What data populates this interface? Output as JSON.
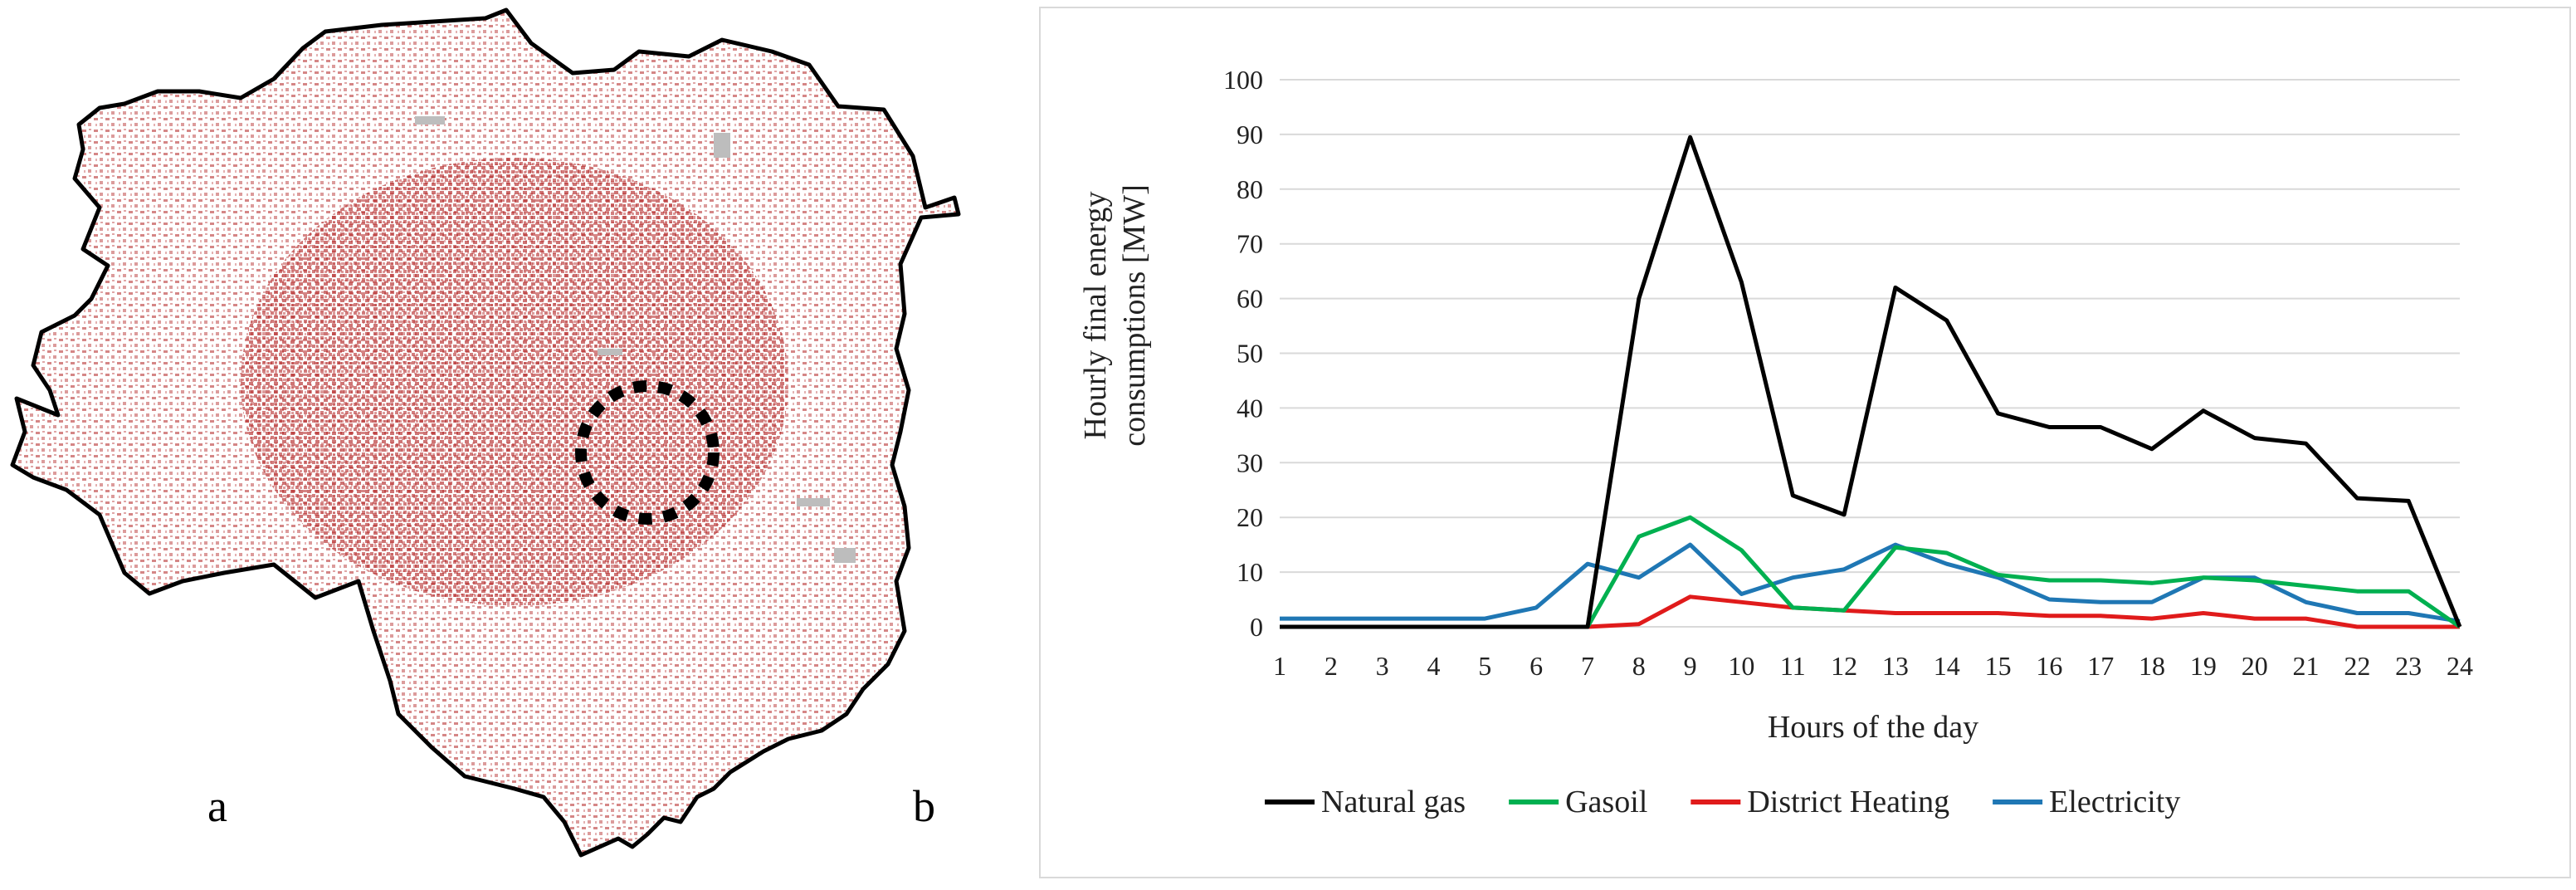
{
  "panel_labels": {
    "map": "a",
    "chart": "b"
  },
  "colors": {
    "natural_gas": "#000000",
    "gasoil": "#00b050",
    "district_heating": "#e01b1b",
    "electricity": "#1f77b4",
    "gridline": "#d9d9d9",
    "map_buildings": "#b22222",
    "map_other": "#bdbdbd"
  },
  "chart_data": {
    "type": "line",
    "title": "",
    "xlabel": "Hours of the day",
    "ylabel_lines": [
      "Hourly final energy",
      "consumptions [MW]"
    ],
    "x": [
      1,
      2,
      3,
      4,
      5,
      6,
      7,
      8,
      9,
      10,
      11,
      12,
      13,
      14,
      15,
      16,
      17,
      18,
      19,
      20,
      21,
      22,
      23,
      24
    ],
    "ylim": [
      0,
      100
    ],
    "yticks": [
      0,
      10,
      20,
      30,
      40,
      50,
      60,
      70,
      80,
      90,
      100
    ],
    "grid": true,
    "legend_position": "bottom",
    "series": [
      {
        "name": "Natural gas",
        "color_key": "natural_gas",
        "values": [
          0,
          0,
          0,
          0,
          0,
          0,
          0,
          60,
          89.5,
          63,
          24,
          20.5,
          62,
          56,
          39,
          36.5,
          36.5,
          32.5,
          39.5,
          34.5,
          33.5,
          23.5,
          23,
          0
        ]
      },
      {
        "name": "Gasoil",
        "color_key": "gasoil",
        "values": [
          0,
          0,
          0,
          0,
          0,
          0,
          0,
          16.5,
          20,
          14,
          3.5,
          3,
          14.5,
          13.5,
          9.5,
          8.5,
          8.5,
          8,
          9,
          8.5,
          7.5,
          6.5,
          6.5,
          0
        ]
      },
      {
        "name": "District Heating",
        "color_key": "district_heating",
        "values": [
          0,
          0,
          0,
          0,
          0,
          0,
          0,
          0.5,
          5.5,
          4.5,
          3.5,
          3,
          2.5,
          2.5,
          2.5,
          2,
          2,
          1.5,
          2.5,
          1.5,
          1.5,
          0,
          0,
          0
        ]
      },
      {
        "name": "Electricity",
        "color_key": "electricity",
        "values": [
          1.5,
          1.5,
          1.5,
          1.5,
          1.5,
          3.5,
          11.5,
          9,
          15,
          6,
          9,
          10.5,
          15,
          11.5,
          9,
          5,
          4.5,
          4.5,
          9,
          9,
          4.5,
          2.5,
          2.5,
          1
        ]
      }
    ]
  }
}
